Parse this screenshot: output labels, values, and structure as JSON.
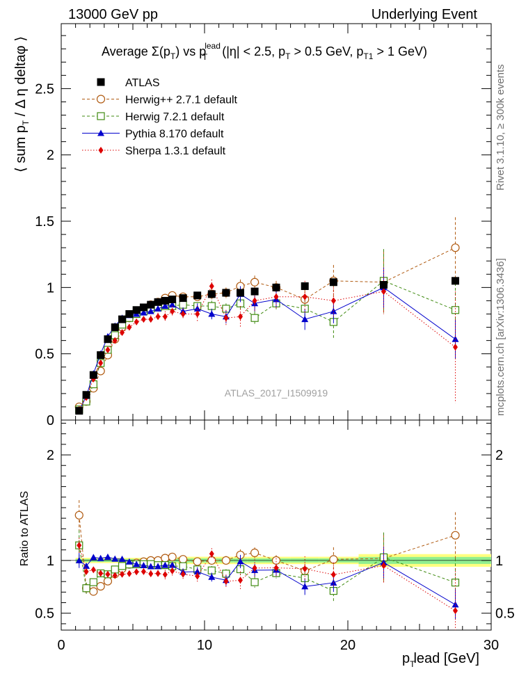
{
  "header": {
    "left": "13000 GeV pp",
    "right": "Underlying Event"
  },
  "side_labels": {
    "rivet": "Rivet 3.1.10, ≥ 300k events",
    "mcplots": "mcplots.cern.ch [arXiv:1306.3436]"
  },
  "chart_data": {
    "type": "scatter",
    "title": {
      "main": "Average Σ(p",
      "t_sub": "T",
      "vs": ") vs p",
      "lead_sup": "lead",
      "lead_sub": "T",
      "cuts_1": " (|η| < 2.5, p",
      "cuts_2": " > 0.5 GeV, p",
      "cuts_3": " > 1 GeV)",
      "t1_sub": "T1"
    },
    "analysis_label": "ATLAS_2017_I1509919",
    "xlabel": {
      "main": "p",
      "sub": "T",
      "rest": "lead [GeV]"
    },
    "ylabel_main": "⟨ sum p",
    "ylabel_sub": "T",
    "ylabel_rest": " / Δ η deltaφ ⟩",
    "ratio_ylabel": "Ratio to ATLAS",
    "xlim": [
      0,
      30
    ],
    "ylim": [
      0,
      2.99
    ],
    "ratio_ylim": [
      0.34,
      2.33
    ],
    "x_ticks": [
      0,
      10,
      20,
      30
    ],
    "x_tick_labels": [
      "0",
      "10",
      "20",
      "30"
    ],
    "y_ticks": [
      0,
      0.5,
      1,
      1.5,
      2,
      2.5
    ],
    "y_tick_labels": [
      "0",
      "0.5",
      "1",
      "1.5",
      "2",
      "2.5"
    ],
    "ratio_y_ticks": [
      0.5,
      1,
      2
    ],
    "ratio_y_tick_labels": [
      "0.5",
      "1",
      "2"
    ],
    "data_x": [
      1.25,
      1.75,
      2.25,
      2.75,
      3.25,
      3.75,
      4.25,
      4.75,
      5.25,
      5.75,
      6.25,
      6.75,
      7.25,
      7.75,
      8.5,
      9.5,
      10.5,
      11.5,
      12.5,
      13.5,
      15,
      17,
      19,
      22.5,
      27.5
    ],
    "series": [
      {
        "name": "ATLAS",
        "color": "#000000",
        "marker": "square-filled",
        "linestyle": "none",
        "values": [
          0.07,
          0.19,
          0.34,
          0.49,
          0.61,
          0.7,
          0.76,
          0.8,
          0.83,
          0.85,
          0.87,
          0.89,
          0.9,
          0.91,
          0.92,
          0.94,
          0.95,
          0.96,
          0.96,
          0.97,
          1.0,
          1.01,
          1.04,
          1.02,
          1.05
        ],
        "errors": [
          0,
          0,
          0,
          0,
          0,
          0,
          0,
          0,
          0,
          0,
          0,
          0,
          0,
          0,
          0,
          0,
          0,
          0,
          0,
          0,
          0,
          0,
          0,
          0,
          0
        ]
      },
      {
        "name": "Herwig++ 2.7.1 default",
        "color": "#b05a10",
        "marker": "circle-open",
        "linestyle": "dashed",
        "values": [
          0.1,
          0.14,
          0.24,
          0.37,
          0.49,
          0.61,
          0.7,
          0.77,
          0.81,
          0.84,
          0.87,
          0.89,
          0.92,
          0.94,
          0.93,
          0.93,
          0.95,
          0.96,
          1.01,
          1.04,
          1.0,
          0.91,
          1.05,
          1.04,
          1.3
        ],
        "errors": [
          0.01,
          0.01,
          0.01,
          0.01,
          0.01,
          0.01,
          0.01,
          0.01,
          0.01,
          0.01,
          0.01,
          0.01,
          0.02,
          0.02,
          0.02,
          0.03,
          0.04,
          0.04,
          0.05,
          0.05,
          0.05,
          0.07,
          0.12,
          0.23,
          0.23
        ]
      },
      {
        "name": "Herwig 7.2.1 default",
        "color": "#3f8a10",
        "marker": "square-open",
        "linestyle": "dashed",
        "values": [
          0.08,
          0.14,
          0.27,
          0.43,
          0.53,
          0.64,
          0.72,
          0.77,
          0.8,
          0.82,
          0.84,
          0.85,
          0.86,
          0.86,
          0.87,
          0.86,
          0.86,
          0.84,
          0.88,
          0.77,
          0.88,
          0.84,
          0.74,
          1.05,
          0.83
        ],
        "errors": [
          0.01,
          0.01,
          0.01,
          0.01,
          0.01,
          0.01,
          0.01,
          0.01,
          0.01,
          0.01,
          0.01,
          0.01,
          0.02,
          0.02,
          0.02,
          0.03,
          0.04,
          0.04,
          0.05,
          0.05,
          0.05,
          0.07,
          0.12,
          0.24,
          0.24
        ]
      },
      {
        "name": "Pythia 8.170 default",
        "color": "#0000cc",
        "marker": "triangle-filled",
        "linestyle": "solid",
        "values": [
          0.07,
          0.18,
          0.35,
          0.5,
          0.63,
          0.71,
          0.77,
          0.79,
          0.8,
          0.81,
          0.82,
          0.84,
          0.86,
          0.87,
          0.82,
          0.84,
          0.8,
          0.78,
          0.95,
          0.88,
          0.91,
          0.76,
          0.82,
          1.0,
          0.61
        ],
        "errors": [
          0.005,
          0.005,
          0.005,
          0.01,
          0.01,
          0.01,
          0.01,
          0.01,
          0.01,
          0.01,
          0.01,
          0.01,
          0.02,
          0.02,
          0.03,
          0.04,
          0.04,
          0.05,
          0.06,
          0.06,
          0.06,
          0.08,
          0.09,
          0.15,
          0.15
        ]
      },
      {
        "name": "Sherpa 1.3.1 default",
        "color": "#dd0000",
        "marker": "diamond-filled",
        "linestyle": "dotted",
        "values": [
          0.08,
          0.17,
          0.31,
          0.43,
          0.53,
          0.6,
          0.66,
          0.7,
          0.74,
          0.76,
          0.76,
          0.78,
          0.78,
          0.82,
          0.8,
          0.8,
          1.01,
          0.77,
          0.78,
          0.9,
          0.93,
          0.93,
          0.9,
          0.97,
          0.55
        ],
        "errors": [
          0.005,
          0.005,
          0.005,
          0.01,
          0.01,
          0.01,
          0.01,
          0.02,
          0.02,
          0.02,
          0.03,
          0.03,
          0.04,
          0.04,
          0.04,
          0.06,
          0.05,
          0.06,
          0.08,
          0.08,
          0.09,
          0.12,
          0.12,
          0.17,
          0.42
        ]
      }
    ],
    "ratio_band_colors": {
      "outer": "#ffff80",
      "inner": "#90ee90"
    }
  }
}
